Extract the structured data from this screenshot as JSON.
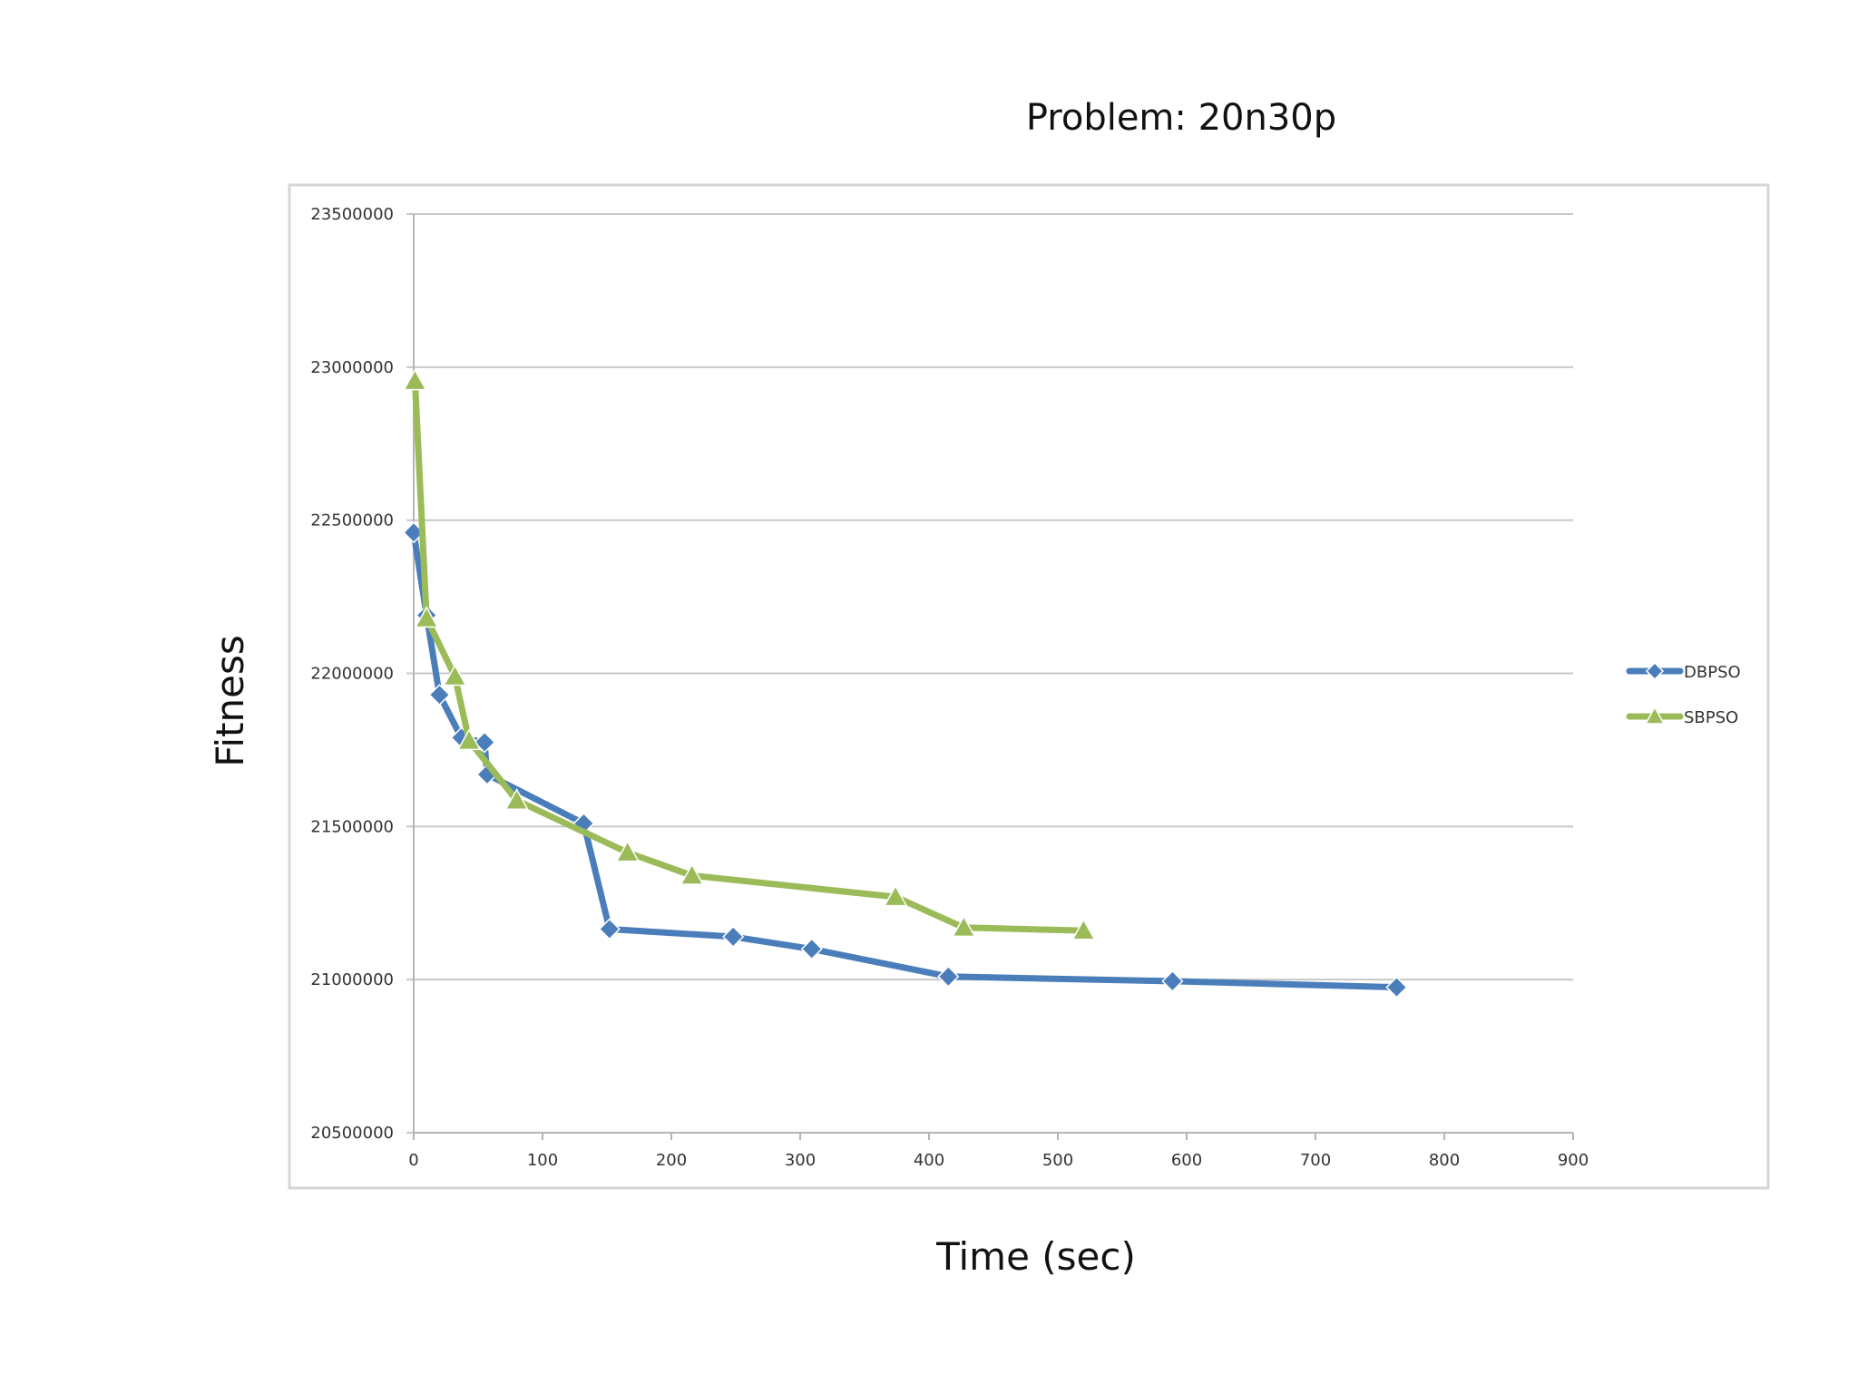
{
  "chart_data": {
    "type": "line",
    "title": "Problem: 20n30p",
    "xlabel": "Time (sec)",
    "ylabel": "Fitness",
    "xlim": [
      0,
      900
    ],
    "ylim": [
      20500000,
      23500000
    ],
    "x_ticks": [
      "0",
      "100",
      "200",
      "300",
      "400",
      "500",
      "600",
      "700",
      "800",
      "900"
    ],
    "y_ticks": [
      "20500000",
      "21000000",
      "21500000",
      "22000000",
      "22500000",
      "23000000",
      "23500000"
    ],
    "grid": "horizontal",
    "legend_position": "right",
    "series": [
      {
        "name": "DBPSO",
        "color": "#4a7ebb",
        "marker": "diamond",
        "points": [
          [
            0,
            22460000
          ],
          [
            10,
            22190000
          ],
          [
            20,
            21930000
          ],
          [
            37,
            21790000
          ],
          [
            55,
            21775000
          ],
          [
            57,
            21670000
          ],
          [
            132,
            21510000
          ],
          [
            152,
            21165000
          ],
          [
            248,
            21140000
          ],
          [
            309,
            21100000
          ],
          [
            415,
            21010000
          ],
          [
            589,
            20995000
          ],
          [
            763,
            20975000
          ]
        ]
      },
      {
        "name": "SBPSO",
        "color": "#9bbb59",
        "marker": "triangle",
        "points": [
          [
            1,
            22955000
          ],
          [
            10,
            22180000
          ],
          [
            32,
            21990000
          ],
          [
            43,
            21780000
          ],
          [
            80,
            21585000
          ],
          [
            166,
            21415000
          ],
          [
            216,
            21340000
          ],
          [
            374,
            21270000
          ],
          [
            427,
            21170000
          ],
          [
            520,
            21160000
          ]
        ]
      }
    ]
  }
}
